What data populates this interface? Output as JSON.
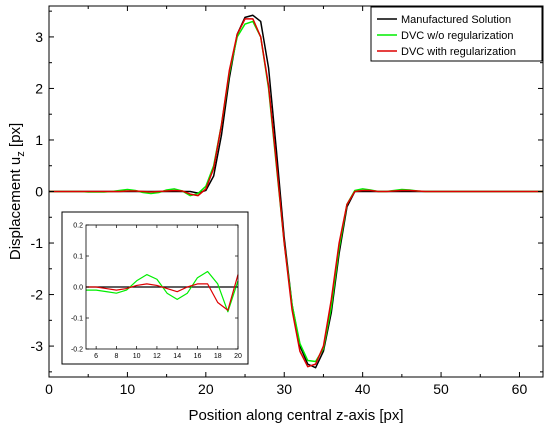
{
  "chart_data": [
    {
      "type": "line",
      "title": "",
      "xlabel": "Position along central z-axis [px]",
      "ylabel": "Displacement u",
      "ylabel_sub": "z",
      "ylabel_suffix": " [px]",
      "xlim": [
        0,
        63
      ],
      "ylim": [
        -3.6,
        3.6
      ],
      "xticks": [
        "0",
        "10",
        "20",
        "30",
        "40",
        "50",
        "60"
      ],
      "yticks": [
        "-3",
        "-2",
        "-1",
        "0",
        "1",
        "2",
        "3"
      ],
      "grid": false,
      "legend_position": "top-right",
      "x": [
        0,
        1,
        2,
        3,
        4,
        5,
        6,
        7,
        8,
        9,
        10,
        11,
        12,
        13,
        14,
        15,
        16,
        17,
        18,
        19,
        20,
        21,
        22,
        23,
        24,
        25,
        26,
        27,
        28,
        29,
        30,
        31,
        32,
        33,
        34,
        35,
        36,
        37,
        38,
        39,
        40,
        41,
        42,
        43,
        44,
        45,
        46,
        47,
        48,
        49,
        50,
        51,
        52,
        53,
        54,
        55,
        56,
        57,
        58,
        59,
        60,
        61,
        62,
        63
      ],
      "series": [
        {
          "name": "Manufactured Solution",
          "color": "#000000",
          "values": [
            0,
            0,
            0,
            0,
            0,
            0,
            0,
            0,
            0,
            0,
            0,
            0,
            0,
            0,
            0,
            0,
            0,
            0,
            0,
            -0.03,
            0.02,
            0.3,
            1.1,
            2.2,
            3.05,
            3.38,
            3.42,
            3.3,
            2.4,
            0.8,
            -0.9,
            -2.2,
            -3.0,
            -3.35,
            -3.42,
            -3.1,
            -2.35,
            -1.2,
            -0.3,
            0,
            0,
            0,
            0,
            0,
            0,
            0,
            0,
            0,
            0,
            0,
            0,
            0,
            0,
            0,
            0,
            0,
            0,
            0,
            0,
            0,
            0,
            0,
            0,
            0
          ]
        },
        {
          "name": "DVC w/o regularization",
          "color": "#00ee00",
          "values": [
            0,
            0,
            0,
            0,
            0,
            -0.01,
            -0.01,
            -0.01,
            0,
            0.02,
            0.04,
            0.02,
            -0.02,
            -0.04,
            -0.02,
            0.03,
            0.05,
            0.01,
            -0.08,
            -0.04,
            0.1,
            0.5,
            1.3,
            2.3,
            3.0,
            3.25,
            3.3,
            3.0,
            2.0,
            0.5,
            -1.0,
            -2.2,
            -2.95,
            -3.28,
            -3.3,
            -3.05,
            -2.25,
            -1.1,
            -0.25,
            0.02,
            0.05,
            0.03,
            0,
            0,
            0.02,
            0.04,
            0.03,
            0.01,
            0,
            0,
            0,
            0,
            0,
            0,
            0,
            0,
            0,
            0,
            0,
            0,
            0,
            0,
            0,
            0
          ]
        },
        {
          "name": "DVC with regularization",
          "color": "#dd0000",
          "values": [
            0,
            0,
            0,
            0,
            0,
            0,
            0,
            0,
            0,
            0,
            0.01,
            0.01,
            0,
            -0.01,
            0,
            0.01,
            0.02,
            0.01,
            -0.05,
            -0.08,
            0.05,
            0.45,
            1.3,
            2.35,
            3.05,
            3.35,
            3.35,
            3.0,
            2.05,
            0.55,
            -1.0,
            -2.3,
            -3.1,
            -3.4,
            -3.35,
            -3.0,
            -2.1,
            -1.0,
            -0.25,
            0,
            0.02,
            0.02,
            0,
            0,
            0.01,
            0.02,
            0.02,
            0.01,
            0,
            0,
            0,
            0,
            0,
            0,
            0,
            0,
            0,
            0,
            0,
            0,
            0,
            0,
            0,
            0
          ]
        }
      ]
    },
    {
      "type": "line",
      "title": "",
      "xlabel": "",
      "ylabel": "",
      "xlim": [
        5,
        20
      ],
      "ylim": [
        -0.2,
        0.2
      ],
      "xticks": [
        "6",
        "8",
        "10",
        "12",
        "14",
        "16",
        "18",
        "20"
      ],
      "yticks": [
        "0.2",
        "0.1",
        "0.0",
        "-0.1",
        "-0.2"
      ],
      "grid": false,
      "x": [
        5,
        6,
        7,
        8,
        9,
        10,
        11,
        12,
        13,
        14,
        15,
        16,
        17,
        18,
        19,
        20
      ],
      "series": [
        {
          "name": "Manufactured Solution",
          "color": "#000000",
          "values": [
            0,
            0,
            0,
            0,
            0,
            0,
            0,
            0,
            0,
            0,
            0,
            0,
            0,
            0,
            0,
            0
          ]
        },
        {
          "name": "DVC w/o regularization",
          "color": "#00ee00",
          "values": [
            -0.01,
            -0.01,
            -0.015,
            -0.02,
            -0.01,
            0.02,
            0.04,
            0.025,
            -0.02,
            -0.04,
            -0.02,
            0.03,
            0.05,
            0.01,
            -0.08,
            0.02
          ]
        },
        {
          "name": "DVC with regularization",
          "color": "#dd0000",
          "values": [
            0,
            0,
            -0.005,
            -0.01,
            -0.005,
            0.005,
            0.01,
            0.005,
            -0.005,
            -0.015,
            0,
            0.01,
            0.01,
            -0.05,
            -0.075,
            0.04
          ]
        }
      ]
    }
  ]
}
